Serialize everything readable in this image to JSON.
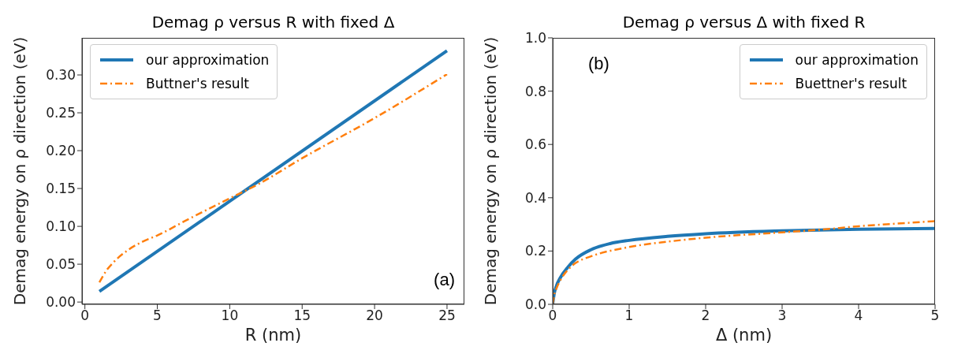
{
  "chart_data": [
    {
      "type": "line",
      "title": "Demag ρ versus R with fixed Δ",
      "xlabel": "R (nm)",
      "ylabel": "Demag energy on ρ direction (eV)",
      "annotations": [
        "(a)"
      ],
      "xlim": [
        -0.2,
        26.2
      ],
      "xticks": [
        0,
        5,
        10,
        15,
        20,
        25
      ],
      "ylim": [
        -0.003,
        0.349
      ],
      "yticks": [
        {
          "value": 0,
          "label": "0.00"
        },
        {
          "value": 0.05,
          "label": "0.05"
        },
        {
          "value": 0.1,
          "label": "0.10"
        },
        {
          "value": 0.15,
          "label": "0.15"
        },
        {
          "value": 0.2,
          "label": "0.20"
        },
        {
          "value": 0.25,
          "label": "0.25"
        },
        {
          "value": 0.3,
          "label": "0.30"
        }
      ],
      "grid": false,
      "legend": "top left",
      "series": [
        {
          "name": "our approximation",
          "color": "#1f77b4",
          "line_style": "solid",
          "x": [
            1,
            25
          ],
          "values": [
            0.014,
            0.332
          ]
        },
        {
          "name": "Buttner's result",
          "color": "#ff7f0e",
          "line_style": "dashed",
          "x": [
            1,
            1.5,
            2,
            3,
            4,
            5,
            7,
            10,
            12,
            15,
            20,
            25
          ],
          "values": [
            0.026,
            0.042,
            0.053,
            0.069,
            0.08,
            0.088,
            0.108,
            0.137,
            0.156,
            0.19,
            0.243,
            0.301
          ]
        }
      ]
    },
    {
      "type": "line",
      "title": "Demag ρ versus Δ with fixed R",
      "xlabel": "Δ (nm)",
      "ylabel": "Demag energy on ρ direction (eV)",
      "annotations": [
        "(b)"
      ],
      "xlim": [
        0,
        5
      ],
      "xticks": [
        0,
        1,
        2,
        3,
        4,
        5
      ],
      "ylim": [
        0,
        1
      ],
      "yticks": [
        {
          "value": 0,
          "label": "0.0"
        },
        {
          "value": 0.2,
          "label": "0.2"
        },
        {
          "value": 0.4,
          "label": "0.4"
        },
        {
          "value": 0.6,
          "label": "0.6"
        },
        {
          "value": 0.8,
          "label": "0.8"
        },
        {
          "value": 1,
          "label": "1.0"
        }
      ],
      "grid": false,
      "legend": "top right",
      "series": [
        {
          "name": "our approximation",
          "color": "#1f77b4",
          "line_style": "solid",
          "x": [
            0,
            0.02,
            0.05,
            0.1,
            0.2,
            0.3,
            0.5,
            0.75,
            1,
            1.5,
            2,
            3,
            4,
            5
          ],
          "values": [
            0,
            0.04,
            0.07,
            0.1,
            0.14,
            0.17,
            0.205,
            0.228,
            0.24,
            0.255,
            0.265,
            0.276,
            0.282,
            0.285
          ]
        },
        {
          "name": "Buettner's result",
          "color": "#ff7f0e",
          "line_style": "dashed",
          "x": [
            0,
            0.02,
            0.05,
            0.1,
            0.2,
            0.3,
            0.5,
            1,
            1.5,
            2,
            3,
            3.5,
            4,
            4.5,
            5
          ],
          "values": [
            0,
            0.035,
            0.06,
            0.09,
            0.13,
            0.155,
            0.18,
            0.215,
            0.235,
            0.25,
            0.27,
            0.28,
            0.293,
            0.303,
            0.312
          ]
        }
      ]
    }
  ]
}
